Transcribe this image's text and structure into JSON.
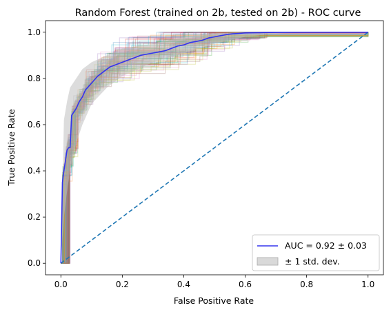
{
  "chart_data": {
    "type": "line",
    "title": "Random Forest (trained on 2b, tested on 2b) -  ROC curve",
    "xlabel": "False Positive Rate",
    "ylabel": "True Positive Rate",
    "xlim": [
      -0.05,
      1.05
    ],
    "ylim": [
      -0.05,
      1.05
    ],
    "xticks": [
      "0.0",
      "0.2",
      "0.4",
      "0.6",
      "0.8",
      "1.0"
    ],
    "yticks": [
      "0.0",
      "0.2",
      "0.4",
      "0.6",
      "0.8",
      "1.0"
    ],
    "grid": false,
    "legend_position": "lower-right",
    "series": [
      {
        "name": "AUC = 0.92 ± 0.03",
        "role": "mean",
        "color": "#3333ee",
        "x": [
          0.0,
          0.005,
          0.01,
          0.02,
          0.025,
          0.03,
          0.035,
          0.04,
          0.05,
          0.06,
          0.07,
          0.08,
          0.1,
          0.12,
          0.14,
          0.16,
          0.18,
          0.2,
          0.22,
          0.24,
          0.26,
          0.28,
          0.3,
          0.32,
          0.34,
          0.36,
          0.38,
          0.4,
          0.42,
          0.44,
          0.46,
          0.48,
          0.5,
          0.52,
          0.54,
          0.56,
          0.58,
          0.6,
          0.65,
          0.7,
          0.8,
          1.0
        ],
        "y": [
          0.0,
          0.35,
          0.4,
          0.49,
          0.5,
          0.5,
          0.64,
          0.65,
          0.67,
          0.7,
          0.72,
          0.75,
          0.78,
          0.81,
          0.83,
          0.85,
          0.86,
          0.87,
          0.88,
          0.89,
          0.9,
          0.905,
          0.91,
          0.915,
          0.92,
          0.93,
          0.94,
          0.945,
          0.955,
          0.96,
          0.965,
          0.975,
          0.98,
          0.985,
          0.99,
          0.993,
          0.995,
          0.997,
          0.998,
          0.999,
          1.0,
          1.0
        ]
      },
      {
        "name": "± 1 std. dev.",
        "role": "band",
        "color": "#c0c0c0",
        "x": [
          0.0,
          0.01,
          0.02,
          0.03,
          0.05,
          0.07,
          0.1,
          0.15,
          0.2,
          0.25,
          0.3,
          0.4,
          0.5,
          0.6,
          0.7,
          0.8,
          1.0
        ],
        "upper": [
          0.0,
          0.62,
          0.7,
          0.76,
          0.8,
          0.84,
          0.87,
          0.9,
          0.93,
          0.94,
          0.95,
          0.98,
          0.995,
          1.0,
          1.0,
          1.0,
          1.0
        ],
        "lower": [
          0.0,
          0.2,
          0.31,
          0.4,
          0.52,
          0.6,
          0.69,
          0.76,
          0.81,
          0.84,
          0.87,
          0.91,
          0.95,
          0.98,
          0.995,
          1.0,
          1.0
        ]
      },
      {
        "name": "",
        "role": "chance",
        "color": "#1f77b4",
        "x": [
          0.0,
          1.0
        ],
        "y": [
          0.0,
          1.0
        ]
      }
    ],
    "fold_curves": {
      "count": 100,
      "colors": [
        "#1f77b4",
        "#ff7f0e",
        "#2ca02c",
        "#d62728",
        "#9467bd",
        "#8c564b",
        "#e377c2",
        "#7f7f7f",
        "#bcbd22",
        "#17becf"
      ],
      "opacity": 0.25
    },
    "legend": [
      {
        "label": "AUC = 0.92 ± 0.03",
        "marker": "line",
        "color": "#3333ee"
      },
      {
        "label": "± 1 std. dev.",
        "marker": "patch",
        "color": "#c0c0c0"
      }
    ]
  }
}
